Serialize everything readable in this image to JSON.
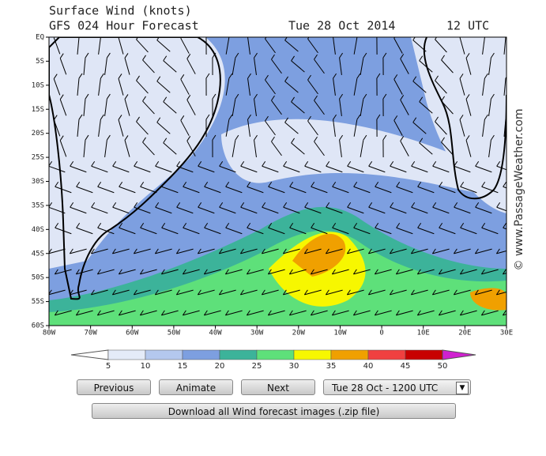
{
  "header": {
    "title": "Surface Wind (knots)",
    "subtitle": "GFS 024 Hour Forecast",
    "date": "Tue 28 Oct 2014",
    "time": "12 UTC"
  },
  "map": {
    "lat_labels": [
      "EQ",
      "5S",
      "10S",
      "15S",
      "20S",
      "25S",
      "30S",
      "35S",
      "40S",
      "45S",
      "50S",
      "55S",
      "60S"
    ],
    "lon_labels": [
      "80W",
      "70W",
      "60W",
      "50W",
      "40W",
      "30W",
      "20W",
      "10W",
      "0",
      "10E",
      "20E",
      "30E"
    ],
    "credit": "© www.PassageWeather.com"
  },
  "legend": {
    "labels": [
      "5",
      "10",
      "15",
      "20",
      "25",
      "30",
      "35",
      "40",
      "45",
      "50"
    ]
  },
  "controls": {
    "previous": "Previous",
    "animate": "Animate",
    "next": "Next",
    "select": "Tue 28 Oct - 1200 UTC",
    "download": "Download all Wind forecast images (.zip file)"
  }
}
